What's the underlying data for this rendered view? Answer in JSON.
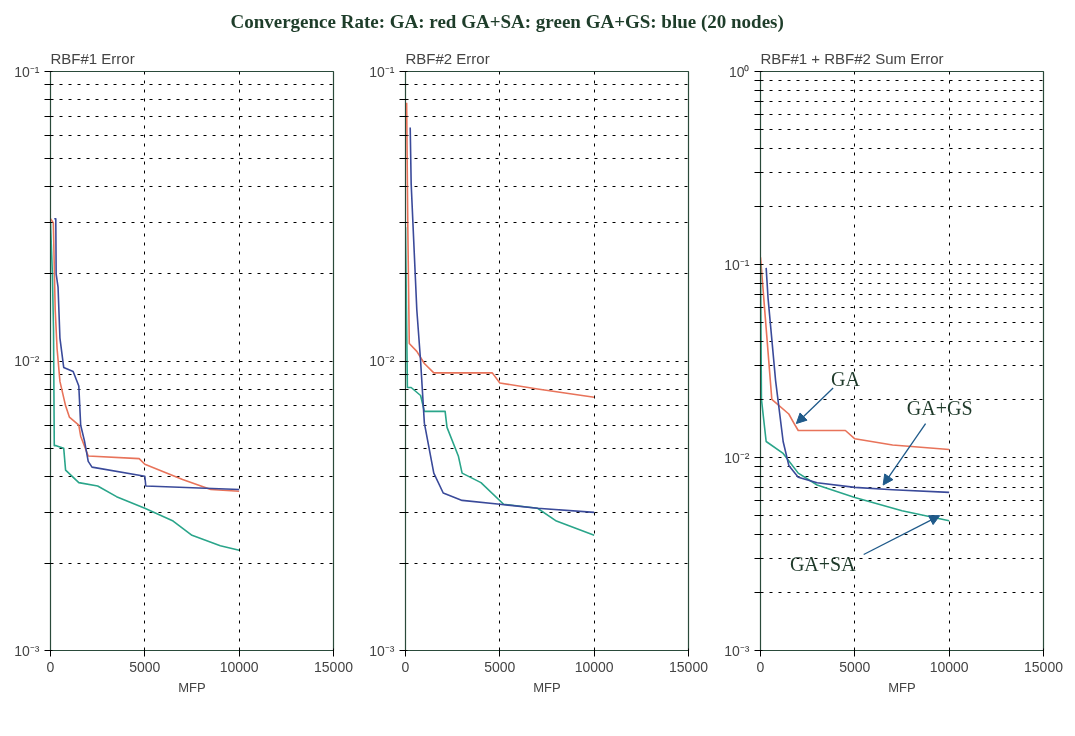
{
  "chart_data": [
    {
      "type": "line",
      "title": "RBF#1 Error",
      "xlabel": "MFP",
      "annotations": [
        "Convergence Rate:    GA: red    GA+SA: green    GA+GS: blue     (20 nodes)"
      ],
      "log": true,
      "grid": true,
      "xlim": [
        0,
        15000
      ],
      "xticks": [
        0,
        5000,
        10000,
        15000
      ],
      "ylim": [
        0.001,
        0.1
      ],
      "yticks": [
        {
          "value": 0.001,
          "label": "10⁻³"
        },
        {
          "value": 0.002,
          "label": null
        },
        {
          "value": 0.003,
          "label": null
        },
        {
          "value": 0.004,
          "label": null
        },
        {
          "value": 0.005,
          "label": null
        },
        {
          "value": 0.006,
          "label": null
        },
        {
          "value": 0.007,
          "label": null
        },
        {
          "value": 0.008,
          "label": null
        },
        {
          "value": 0.009,
          "label": null
        },
        {
          "value": 0.01,
          "label": "10⁻²"
        },
        {
          "value": 0.02,
          "label": null
        },
        {
          "value": 0.03,
          "label": null
        },
        {
          "value": 0.04,
          "label": null
        },
        {
          "value": 0.05,
          "label": null
        },
        {
          "value": 0.06,
          "label": null
        },
        {
          "value": 0.07,
          "label": null
        },
        {
          "value": 0.08,
          "label": null
        },
        {
          "value": 0.09,
          "label": null
        },
        {
          "value": 0.1,
          "label": "10⁻¹"
        }
      ],
      "series": [
        {
          "color": "#e8735a",
          "x": [
            0,
            150,
            250,
            350,
            500,
            800,
            1000,
            1500,
            1600,
            2000,
            4700,
            5000,
            7000,
            8500,
            10000
          ],
          "values": [
            0.031,
            0.03,
            0.015,
            0.011,
            0.0085,
            0.007,
            0.0064,
            0.006,
            0.0055,
            0.0047,
            0.0046,
            0.0044,
            0.0039,
            0.0036,
            0.00355
          ]
        },
        {
          "color": "#2aa58a",
          "x": [
            0,
            100,
            160,
            200,
            300,
            700,
            800,
            1500,
            2500,
            3500,
            5000,
            6500,
            7500,
            9000,
            10000
          ],
          "values": [
            0.03,
            0.02,
            0.0128,
            0.0051,
            0.0051,
            0.005,
            0.0042,
            0.0038,
            0.0037,
            0.0034,
            0.0031,
            0.0028,
            0.0025,
            0.0023,
            0.00222
          ]
        },
        {
          "color": "#3a4a9a",
          "x": [
            200,
            280,
            300,
            400,
            500,
            700,
            1200,
            1500,
            1600,
            1800,
            2000,
            2200,
            5000,
            5050,
            10000
          ],
          "values": [
            0.031,
            0.031,
            0.02,
            0.018,
            0.012,
            0.0095,
            0.0092,
            0.0082,
            0.006,
            0.0053,
            0.0045,
            0.0043,
            0.004,
            0.0037,
            0.0036
          ]
        }
      ]
    },
    {
      "type": "line",
      "title": "RBF#2 Error",
      "xlabel": "MFP",
      "log": true,
      "grid": true,
      "xlim": [
        0,
        15000
      ],
      "xticks": [
        0,
        5000,
        10000,
        15000
      ],
      "ylim": [
        0.001,
        0.1
      ],
      "yticks": [
        {
          "value": 0.001,
          "label": "10⁻³"
        },
        {
          "value": 0.002,
          "label": null
        },
        {
          "value": 0.003,
          "label": null
        },
        {
          "value": 0.004,
          "label": null
        },
        {
          "value": 0.005,
          "label": null
        },
        {
          "value": 0.006,
          "label": null
        },
        {
          "value": 0.007,
          "label": null
        },
        {
          "value": 0.008,
          "label": null
        },
        {
          "value": 0.009,
          "label": null
        },
        {
          "value": 0.01,
          "label": "10⁻²"
        },
        {
          "value": 0.02,
          "label": null
        },
        {
          "value": 0.03,
          "label": null
        },
        {
          "value": 0.04,
          "label": null
        },
        {
          "value": 0.05,
          "label": null
        },
        {
          "value": 0.06,
          "label": null
        },
        {
          "value": 0.07,
          "label": null
        },
        {
          "value": 0.08,
          "label": null
        },
        {
          "value": 0.09,
          "label": null
        },
        {
          "value": 0.1,
          "label": "10⁻¹"
        }
      ],
      "series": [
        {
          "color": "#e8735a",
          "x": [
            60,
            120,
            200,
            600,
            1000,
            1500,
            4600,
            5000,
            7000,
            10000
          ],
          "values": [
            0.078,
            0.03,
            0.0115,
            0.0108,
            0.0098,
            0.0091,
            0.0091,
            0.0084,
            0.008,
            0.0075
          ]
        },
        {
          "color": "#2aa58a",
          "x": [
            0,
            100,
            300,
            800,
            1000,
            2100,
            2200,
            2800,
            3000,
            4000,
            5200,
            7000,
            8000,
            10000
          ],
          "values": [
            0.029,
            0.0081,
            0.0081,
            0.0076,
            0.0067,
            0.0067,
            0.0059,
            0.0047,
            0.0041,
            0.0038,
            0.0032,
            0.0031,
            0.0028,
            0.0025
          ]
        },
        {
          "color": "#3a4a9a",
          "x": [
            250,
            300,
            600,
            800,
            1000,
            1500,
            2000,
            3000,
            5000,
            7000,
            10000
          ],
          "values": [
            0.064,
            0.041,
            0.015,
            0.01,
            0.0061,
            0.0041,
            0.0035,
            0.0033,
            0.0032,
            0.0031,
            0.003
          ]
        }
      ]
    },
    {
      "type": "line",
      "title": "RBF#1 + RBF#2 Sum Error",
      "xlabel": "MFP",
      "log": true,
      "grid": true,
      "xlim": [
        0,
        15000
      ],
      "xticks": [
        0,
        5000,
        10000,
        15000
      ],
      "ylim": [
        0.001,
        1
      ],
      "yticks": [
        {
          "value": 0.001,
          "label": "10⁻³"
        },
        {
          "value": 0.002,
          "label": null
        },
        {
          "value": 0.003,
          "label": null
        },
        {
          "value": 0.004,
          "label": null
        },
        {
          "value": 0.005,
          "label": null
        },
        {
          "value": 0.006,
          "label": null
        },
        {
          "value": 0.007,
          "label": null
        },
        {
          "value": 0.008,
          "label": null
        },
        {
          "value": 0.009,
          "label": null
        },
        {
          "value": 0.01,
          "label": "10⁻²"
        },
        {
          "value": 0.02,
          "label": null
        },
        {
          "value": 0.03,
          "label": null
        },
        {
          "value": 0.04,
          "label": null
        },
        {
          "value": 0.05,
          "label": null
        },
        {
          "value": 0.06,
          "label": null
        },
        {
          "value": 0.07,
          "label": null
        },
        {
          "value": 0.08,
          "label": null
        },
        {
          "value": 0.09,
          "label": null
        },
        {
          "value": 0.1,
          "label": "10⁻¹"
        },
        {
          "value": 0.2,
          "label": null
        },
        {
          "value": 0.3,
          "label": null
        },
        {
          "value": 0.4,
          "label": null
        },
        {
          "value": 0.5,
          "label": null
        },
        {
          "value": 0.6,
          "label": null
        },
        {
          "value": 0.7,
          "label": null
        },
        {
          "value": 0.8,
          "label": null
        },
        {
          "value": 0.9,
          "label": null
        },
        {
          "value": 1,
          "label": "10⁰"
        }
      ],
      "annotations": [
        {
          "text": "GA",
          "x": 1900,
          "y": 0.015
        },
        {
          "text": "GA+GS",
          "x": 6500,
          "y": 0.0072
        },
        {
          "text": "GA+SA",
          "x": 9500,
          "y": 0.005
        }
      ],
      "series": [
        {
          "color": "#e8735a",
          "x": [
            0,
            600,
            1500,
            1800,
            2000,
            4500,
            5000,
            7000,
            10000
          ],
          "values": [
            0.109,
            0.02,
            0.0168,
            0.0149,
            0.0138,
            0.0138,
            0.0125,
            0.0116,
            0.011
          ]
        },
        {
          "color": "#2aa58a",
          "x": [
            0,
            50,
            300,
            1200,
            2000,
            3000,
            5000,
            7500,
            10000
          ],
          "values": [
            0.1,
            0.02,
            0.0121,
            0.0105,
            0.0083,
            0.0072,
            0.0062,
            0.0053,
            0.0047
          ]
        },
        {
          "color": "#3a4a9a",
          "x": [
            300,
            400,
            800,
            1200,
            1500,
            2000,
            3000,
            5000,
            7000,
            10000
          ],
          "values": [
            0.096,
            0.067,
            0.025,
            0.0121,
            0.0091,
            0.0079,
            0.0074,
            0.007,
            0.0068,
            0.0066
          ]
        }
      ]
    }
  ]
}
